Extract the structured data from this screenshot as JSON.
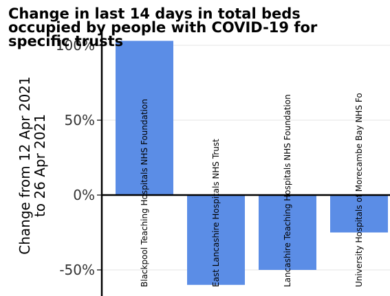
{
  "chart_data": {
    "type": "bar",
    "title_lines": [
      "Change in last 14 days in total beds",
      "occupied by people with COVID-19 for",
      "specific trusts"
    ],
    "ylabel_lines": [
      "Change from 12 Apr 2021",
      "to 26 Apr 2021"
    ],
    "xlabel": "",
    "categories": [
      "Blackpool Teaching Hospitals NHS Foundation",
      "East Lancashire Hospitals NHS Trust",
      "Lancashire Teaching Hospitals NHS Foundation",
      "University Hospitals of Morecambe Bay NHS Fo"
    ],
    "values": [
      103,
      -60,
      -50,
      -25
    ],
    "ylim": [
      -67,
      110
    ],
    "yticks": [
      {
        "value": -50,
        "label": "-50%"
      },
      {
        "value": 0,
        "label": "0%"
      },
      {
        "value": 50,
        "label": "50%"
      },
      {
        "value": 100,
        "label": "100%"
      }
    ],
    "bar_color": "#5b8de6",
    "grid": true,
    "legend": "none"
  }
}
